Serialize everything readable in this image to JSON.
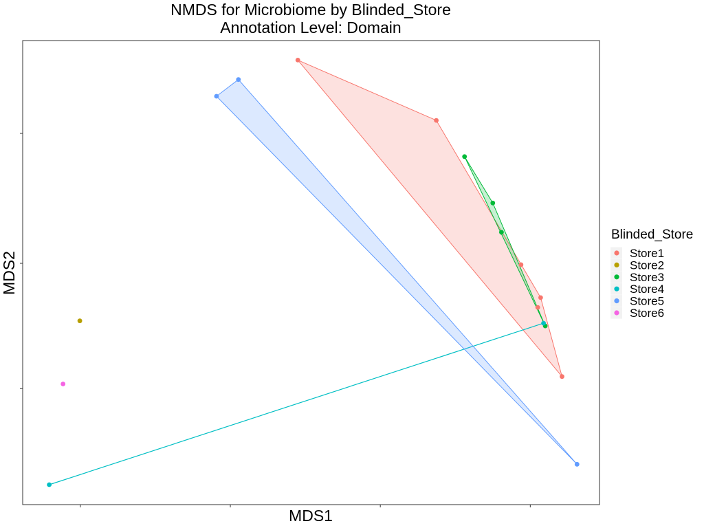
{
  "chart_data": {
    "type": "scatter",
    "title": "NMDS for Microbiome by Blinded_Store",
    "subtitle": "Annotation Level: Domain",
    "xlabel": "MDS1",
    "ylabel": "MDS2",
    "xlim": [
      0,
      100
    ],
    "ylim": [
      0,
      100
    ],
    "x_ticks": [
      10,
      36,
      62,
      88
    ],
    "y_ticks": [
      25,
      52,
      80
    ],
    "grid": false,
    "hulls": true,
    "legend": {
      "title": "Blinded_Store",
      "placement": "right"
    },
    "series": [
      {
        "name": "Store1",
        "color": "#F8766D",
        "points": [
          [
            47.7,
            95.8
          ],
          [
            71.7,
            82.8
          ],
          [
            86.4,
            51.7
          ],
          [
            89.8,
            44.6
          ],
          [
            93.5,
            27.6
          ],
          [
            89.3,
            42.5
          ]
        ]
      },
      {
        "name": "Store2",
        "color": "#B79F00",
        "points": [
          [
            9.9,
            39.6
          ]
        ]
      },
      {
        "name": "Store3",
        "color": "#00BA38",
        "points": [
          [
            76.6,
            75.0
          ],
          [
            81.5,
            65.0
          ],
          [
            83.0,
            58.7
          ],
          [
            90.6,
            38.5
          ]
        ]
      },
      {
        "name": "Store4",
        "color": "#00BFC4",
        "points": [
          [
            4.6,
            4.3
          ],
          [
            90.3,
            39.1
          ]
        ]
      },
      {
        "name": "Store5",
        "color": "#619CFF",
        "points": [
          [
            33.6,
            88.0
          ],
          [
            37.4,
            91.6
          ],
          [
            96.1,
            8.7
          ]
        ]
      },
      {
        "name": "Store6",
        "color": "#F564E3",
        "points": [
          [
            7.0,
            26.0
          ]
        ]
      }
    ]
  }
}
